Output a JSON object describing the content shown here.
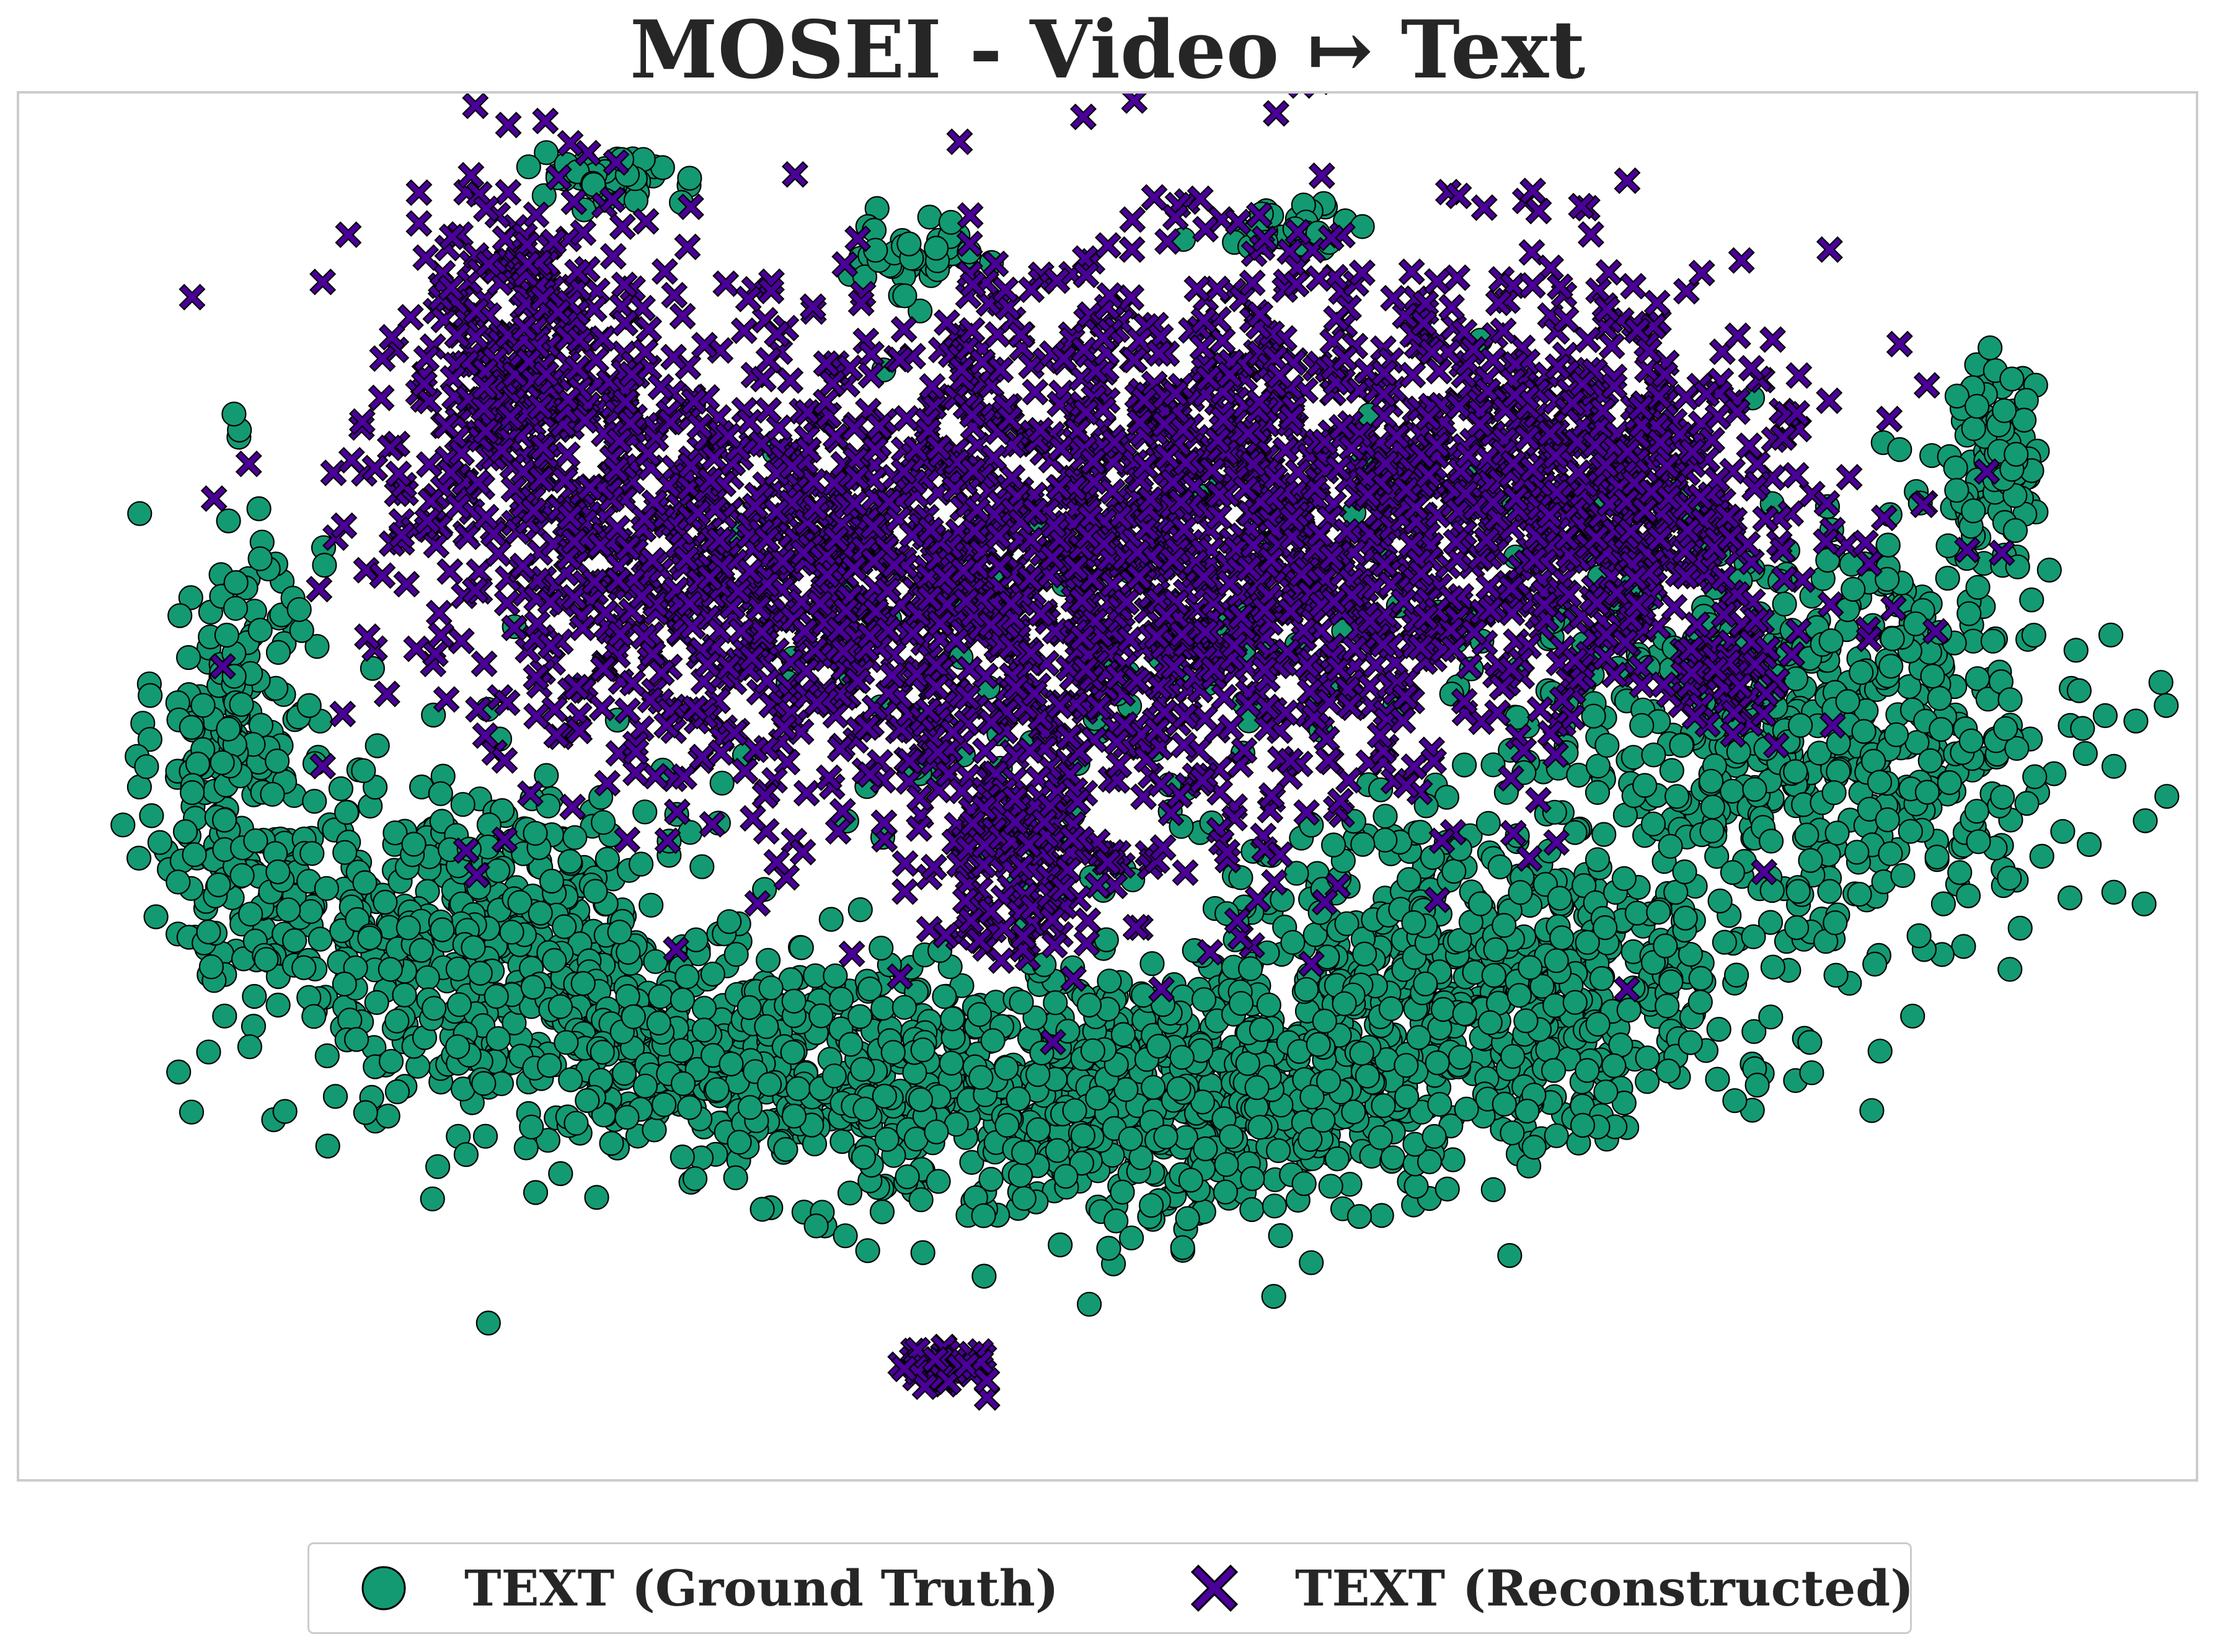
{
  "chart_data": {
    "type": "scatter",
    "title": "MOSEI - Video ↦ Text",
    "xlabel": "",
    "ylabel": "",
    "xlim": [
      0,
      100
    ],
    "ylim": [
      0,
      100
    ],
    "grid": false,
    "axes_ticks": "none",
    "legend_placement": "bottom-center",
    "note_on_values": "Embedding coordinates on unlabeled axes; cluster centers estimated on a 0-100 normalized scale.",
    "series": [
      {
        "name": "TEXT (Ground Truth)",
        "marker": "circle",
        "color": "#139a73",
        "edge_color": "#000000",
        "clusters": [
          {
            "cx": 8,
            "cy": 51,
            "sx": 2.0,
            "sy": 10,
            "n": 260,
            "angle": 0
          },
          {
            "cx": 20,
            "cy": 40,
            "sx": 6.0,
            "sy": 5.0,
            "n": 420,
            "angle": -15
          },
          {
            "cx": 32,
            "cy": 29,
            "sx": 8.5,
            "sy": 4.0,
            "n": 560,
            "angle": -8
          },
          {
            "cx": 52,
            "cy": 26,
            "sx": 8.5,
            "sy": 5.0,
            "n": 640,
            "angle": 5
          },
          {
            "cx": 68,
            "cy": 34,
            "sx": 7.5,
            "sy": 6.0,
            "n": 620,
            "angle": 15
          },
          {
            "cx": 84,
            "cy": 54,
            "sx": 6.5,
            "sy": 8.0,
            "n": 600,
            "angle": 25
          },
          {
            "cx": 93,
            "cy": 75,
            "sx": 1.2,
            "sy": 3.5,
            "n": 90,
            "angle": 0
          },
          {
            "cx": 26,
            "cy": 96,
            "sx": 1.6,
            "sy": 0.9,
            "n": 45,
            "angle": 0
          },
          {
            "cx": 41,
            "cy": 90,
            "sx": 1.6,
            "sy": 1.6,
            "n": 40,
            "angle": 0
          },
          {
            "cx": 59,
            "cy": 92,
            "sx": 1.8,
            "sy": 0.8,
            "n": 35,
            "angle": 0
          },
          {
            "cx": 55,
            "cy": 52,
            "sx": 12,
            "sy": 12,
            "n": 160,
            "angle": 0
          }
        ]
      },
      {
        "name": "TEXT (Reconstructed)",
        "marker": "x",
        "color": "#4b0099",
        "edge_color": "#000000",
        "clusters": [
          {
            "cx": 22,
            "cy": 82,
            "sx": 3.5,
            "sy": 7.0,
            "n": 320,
            "angle": 0
          },
          {
            "cx": 34,
            "cy": 66,
            "sx": 9.5,
            "sy": 8.5,
            "n": 820,
            "angle": 0
          },
          {
            "cx": 50,
            "cy": 66,
            "sx": 8.0,
            "sy": 12,
            "n": 820,
            "angle": 0
          },
          {
            "cx": 64,
            "cy": 71,
            "sx": 10,
            "sy": 10,
            "n": 880,
            "angle": 0
          },
          {
            "cx": 75,
            "cy": 71,
            "sx": 4.0,
            "sy": 5.0,
            "n": 260,
            "angle": 0
          },
          {
            "cx": 46,
            "cy": 44,
            "sx": 2.0,
            "sy": 3.5,
            "n": 120,
            "angle": 0
          },
          {
            "cx": 42,
            "cy": 6,
            "sx": 1.0,
            "sy": 0.9,
            "n": 45,
            "angle": 0
          },
          {
            "cx": 80,
            "cy": 59,
            "sx": 2.0,
            "sy": 2.0,
            "n": 45,
            "angle": 0
          }
        ]
      }
    ]
  }
}
